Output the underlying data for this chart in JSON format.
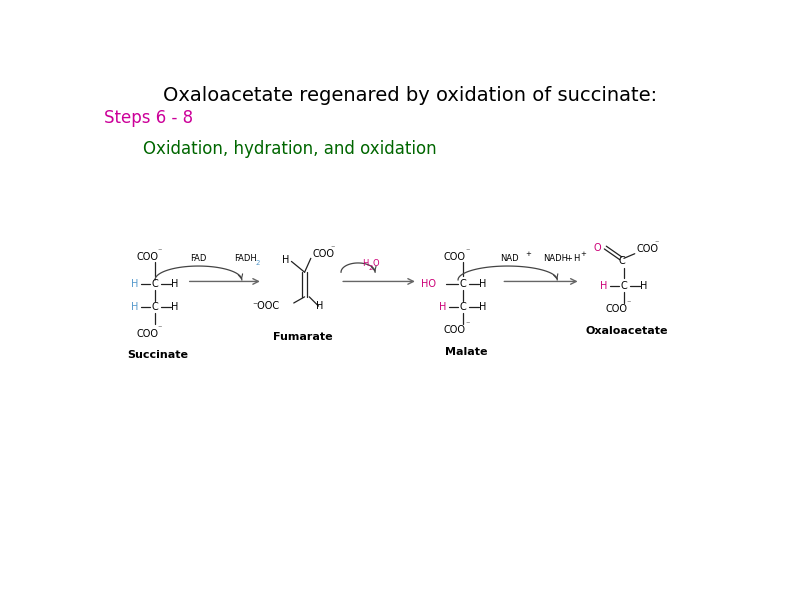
{
  "title": "Oxaloacetate regenared by oxidation of succinate:",
  "subtitle": "Steps 6 - 8",
  "subtitle2": "Oxidation, hydration, and oxidation",
  "title_color": "#000000",
  "subtitle_color": "#cc0099",
  "subtitle2_color": "#006600",
  "bg_color": "#ffffff",
  "title_fontsize": 14,
  "subtitle_fontsize": 12,
  "subtitle2_fontsize": 12,
  "mol_fontsize": 7,
  "label_fontsize": 8
}
